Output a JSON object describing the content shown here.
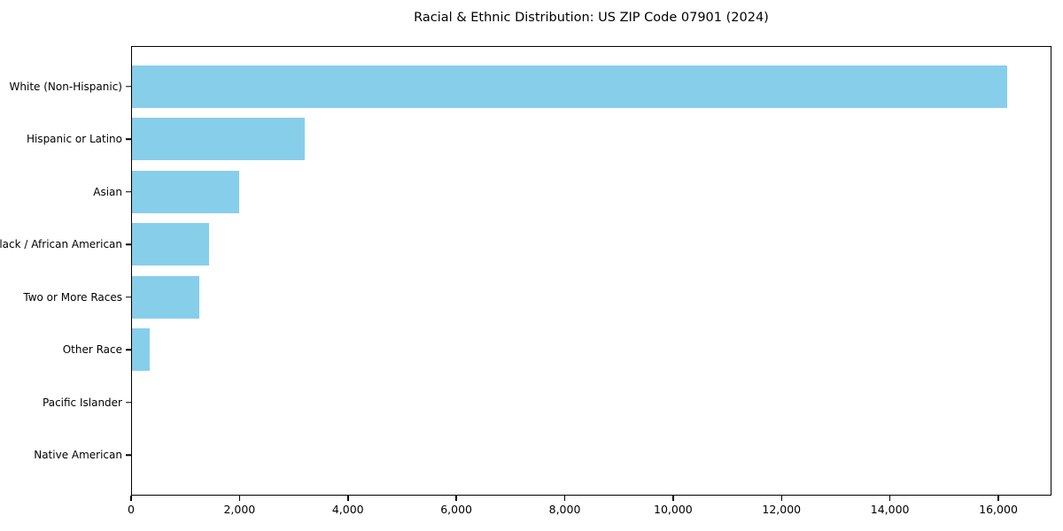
{
  "chart_data": {
    "type": "bar",
    "orientation": "horizontal",
    "title": "Racial & Ethnic Distribution: US ZIP Code 07901 (2024)",
    "categories": [
      "White (Non-Hispanic)",
      "Hispanic or Latino",
      "Asian",
      "Black / African American",
      "Two or More Races",
      "Other Race",
      "Pacific Islander",
      "Native American"
    ],
    "values": [
      16170,
      3200,
      1980,
      1420,
      1240,
      320,
      0,
      0
    ],
    "xlabel": "",
    "ylabel": "",
    "xlim": [
      0,
      16980
    ],
    "x_ticks": [
      0,
      2000,
      4000,
      6000,
      8000,
      10000,
      12000,
      14000,
      16000
    ],
    "x_tick_labels": [
      "0",
      "2,000",
      "4,000",
      "6,000",
      "8,000",
      "10,000",
      "12,000",
      "14,000",
      "16,000"
    ],
    "bar_color": "#87CEEB",
    "text_color": "#000000",
    "grid": false,
    "legend": false
  }
}
